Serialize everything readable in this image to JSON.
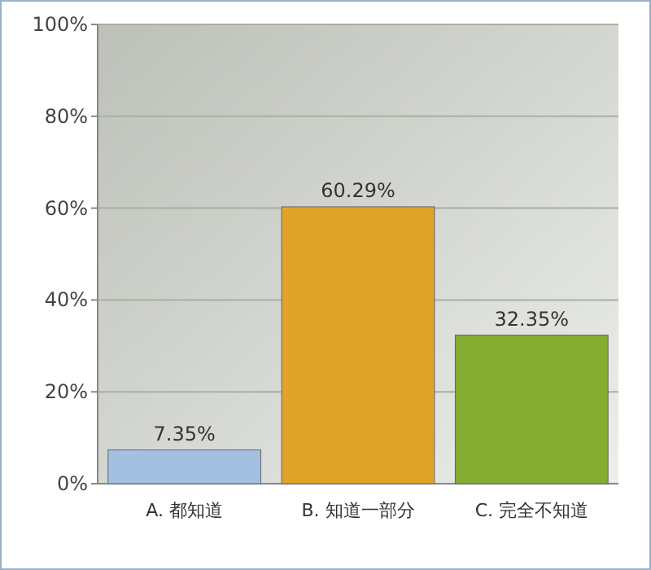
{
  "chart_data": {
    "type": "bar",
    "categories": [
      "A. 都知道",
      "B. 知道一部分",
      "C. 完全不知道"
    ],
    "values": [
      7.35,
      60.29,
      32.35
    ],
    "colors": [
      "#a4c0e0",
      "#e0a428",
      "#84ac30"
    ],
    "value_labels": [
      "7.35%",
      "60.29%",
      "32.35%"
    ],
    "ylim": [
      0,
      100
    ],
    "yticks": [
      {
        "value": 0,
        "label": "0%"
      },
      {
        "value": 20,
        "label": "20%"
      },
      {
        "value": 40,
        "label": "40%"
      },
      {
        "value": 60,
        "label": "60%"
      },
      {
        "value": 80,
        "label": "80%"
      },
      {
        "value": 100,
        "label": "100%"
      }
    ],
    "grid": "y"
  }
}
